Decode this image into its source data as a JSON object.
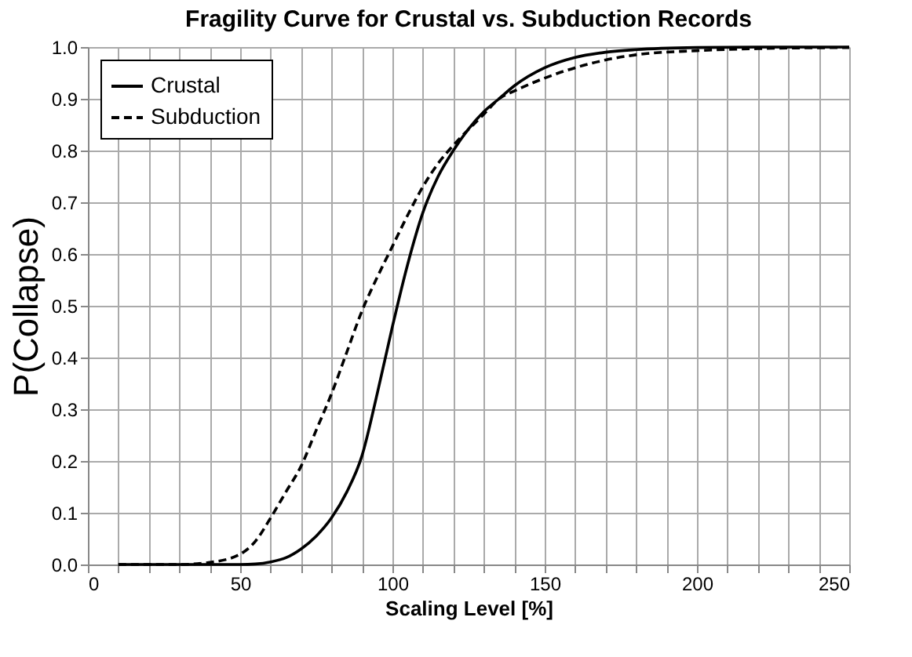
{
  "chart_data": {
    "type": "line",
    "title": "Fragility Curve for Crustal vs. Subduction Records",
    "xlabel": "Scaling Level [%]",
    "ylabel": "P(Collapse)",
    "x": [
      10,
      30,
      40,
      50,
      55,
      60,
      65,
      70,
      75,
      80,
      85,
      90,
      95,
      100,
      105,
      110,
      115,
      120,
      130,
      135,
      140,
      150,
      160,
      170,
      180,
      200,
      220,
      250
    ],
    "series": [
      {
        "name": "Crustal",
        "color": "#000000",
        "line_style": "solid",
        "values": [
          0,
          0,
          0,
          0,
          0.001,
          0.005,
          0.013,
          0.03,
          0.055,
          0.09,
          0.14,
          0.21,
          0.33,
          0.46,
          0.58,
          0.68,
          0.75,
          0.8,
          0.875,
          0.9,
          0.925,
          0.96,
          0.98,
          0.99,
          0.995,
          0.999,
          1.0,
          1.0
        ]
      },
      {
        "name": "Subduction",
        "color": "#000000",
        "line_style": "dashed",
        "values": [
          0,
          0,
          0.004,
          0.02,
          0.045,
          0.09,
          0.14,
          0.19,
          0.26,
          0.33,
          0.41,
          0.49,
          0.555,
          0.615,
          0.675,
          0.73,
          0.775,
          0.81,
          0.87,
          0.9,
          0.915,
          0.94,
          0.96,
          0.975,
          0.985,
          0.993,
          0.997,
          0.999
        ]
      }
    ],
    "xlim": [
      0,
      250
    ],
    "ylim": [
      0,
      1
    ],
    "xticks": [
      0,
      {
        "value": 10,
        "label": null
      },
      {
        "value": 20,
        "label": null
      },
      {
        "value": 30,
        "label": null
      },
      {
        "value": 40,
        "label": null
      },
      50,
      {
        "value": 60,
        "label": null
      },
      {
        "value": 70,
        "label": null
      },
      {
        "value": 80,
        "label": null
      },
      {
        "value": 90,
        "label": null
      },
      100,
      {
        "value": 110,
        "label": null
      },
      {
        "value": 120,
        "label": null
      },
      {
        "value": 130,
        "label": null
      },
      {
        "value": 140,
        "label": null
      },
      150,
      {
        "value": 160,
        "label": null
      },
      {
        "value": 170,
        "label": null
      },
      {
        "value": 180,
        "label": null
      },
      {
        "value": 190,
        "label": null
      },
      200,
      {
        "value": 210,
        "label": null
      },
      {
        "value": 220,
        "label": null
      },
      {
        "value": 230,
        "label": null
      },
      {
        "value": 240,
        "label": null
      },
      250
    ],
    "yticks": [
      {
        "value": 0,
        "label": "0.0"
      },
      0.1,
      0.2,
      0.3,
      0.4,
      0.5,
      0.6,
      0.7,
      0.8,
      0.9,
      {
        "value": 1,
        "label": "1.0"
      }
    ],
    "grid": true,
    "legend": "top left",
    "marker": "none"
  }
}
